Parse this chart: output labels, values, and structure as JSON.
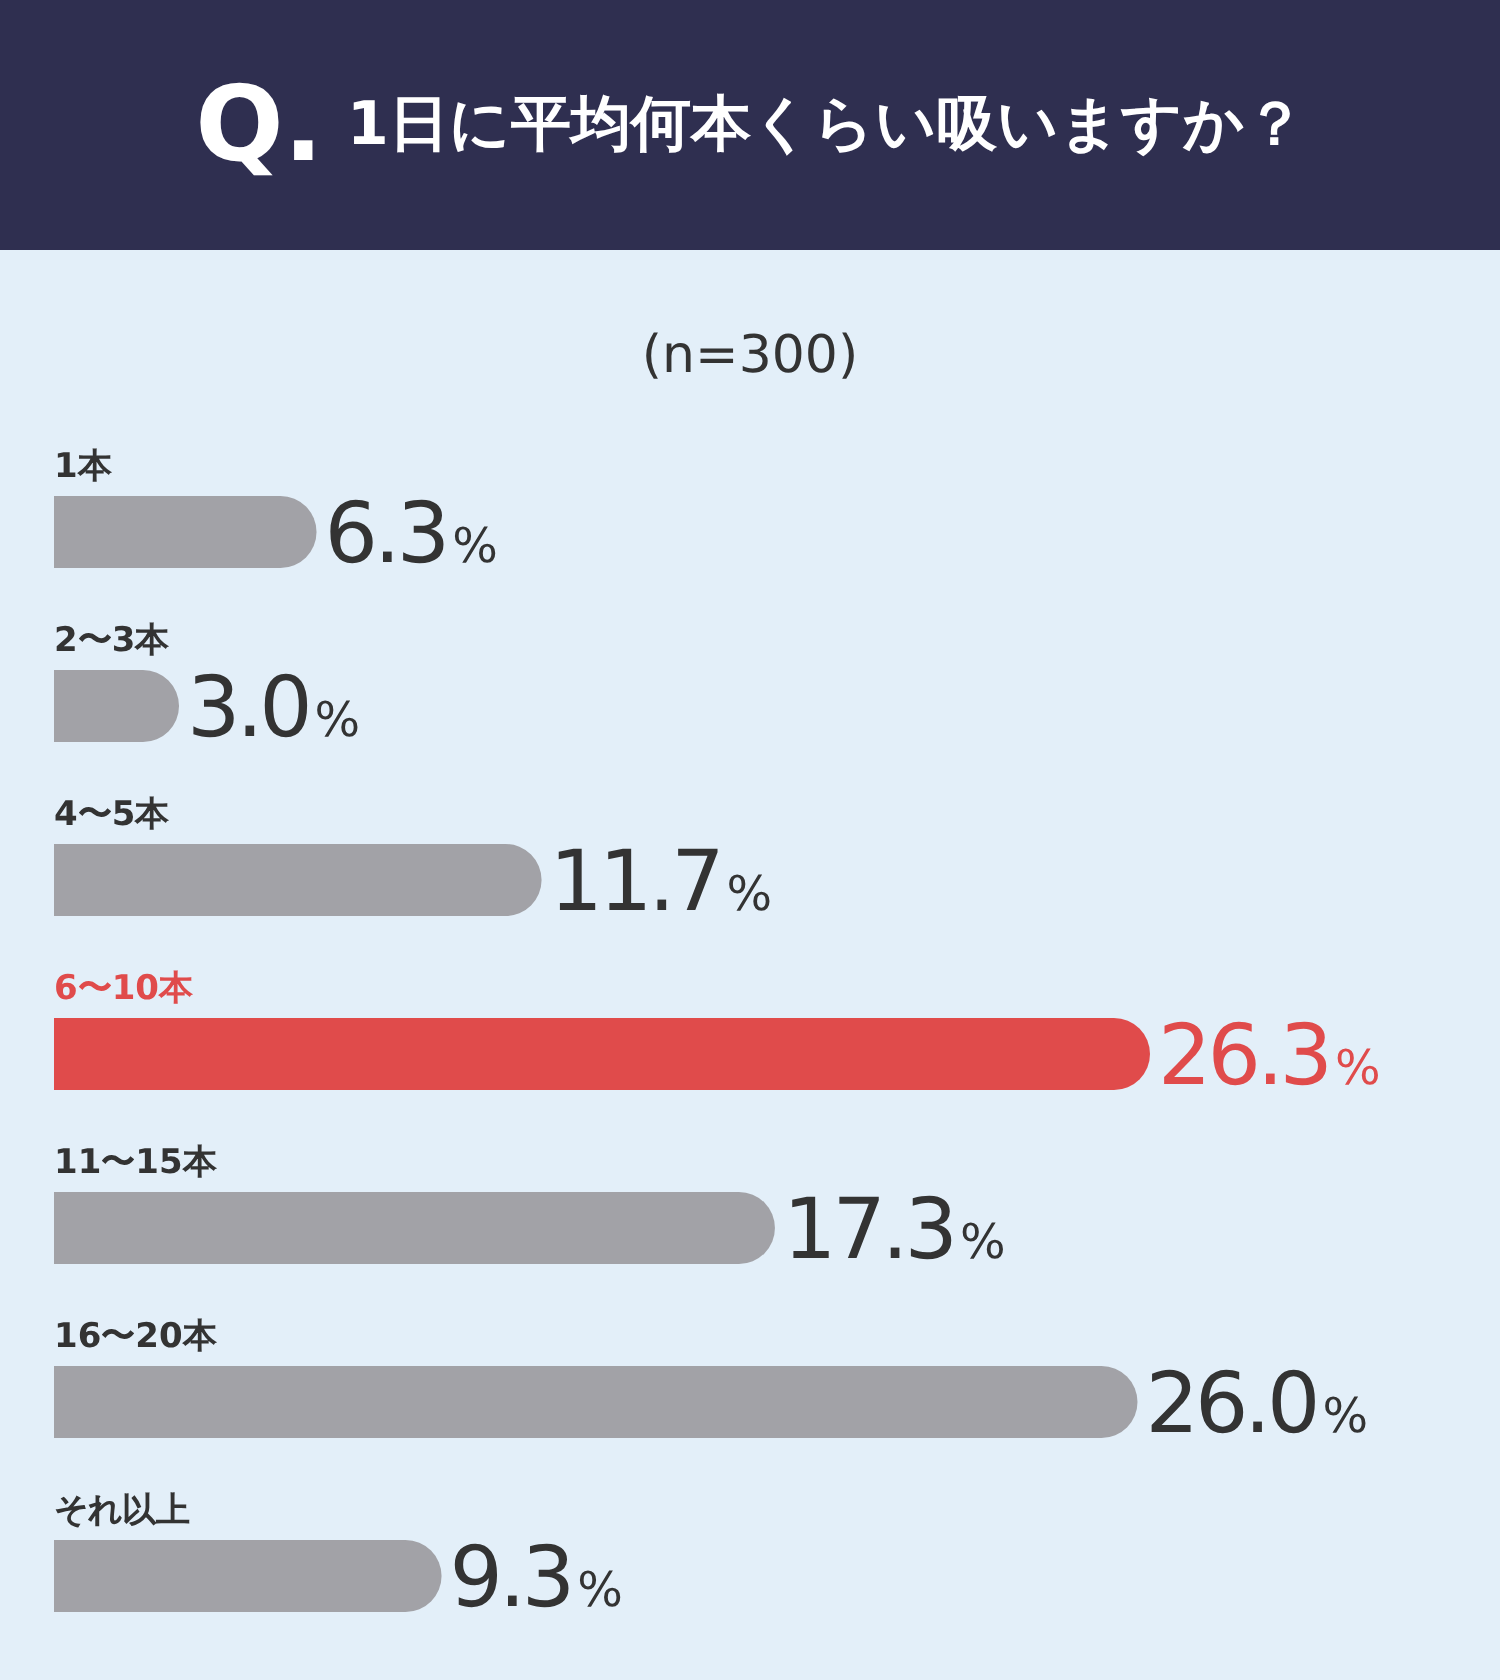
{
  "chart_data": {
    "type": "bar",
    "orientation": "horizontal",
    "title": "Q. 1日に平均何本くらい吸いますか？",
    "subtitle": "(n=300)",
    "categories": [
      "1本",
      "2〜3本",
      "4〜5本",
      "6〜10本",
      "11〜15本",
      "16〜20本",
      "それ以上"
    ],
    "values": [
      6.3,
      3.0,
      11.7,
      26.3,
      17.3,
      26.0,
      9.3
    ],
    "value_labels": [
      "6.3%",
      "3.0%",
      "11.7%",
      "26.3%",
      "17.3%",
      "26.0%",
      "9.3%"
    ],
    "colors": [
      "#a2a2a7",
      "#a2a2a7",
      "#a2a2a7",
      "#e04b4b",
      "#a2a2a7",
      "#a2a2a7",
      "#a2a2a7"
    ],
    "tick_labels": "y"
  }
}
